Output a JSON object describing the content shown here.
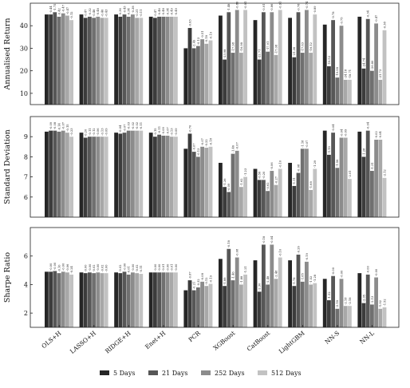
{
  "chart_data": [
    {
      "type": "bar",
      "ylabel": "Annualised Return",
      "ylim": [
        5,
        50
      ],
      "yticks": [
        10,
        20,
        30,
        40
      ],
      "grid": false,
      "categories": [
        "OLS+H",
        "LASSO+H",
        "RIDGE+H",
        "Enet+H",
        "PCR",
        "XGBoost",
        "CatBoost",
        "LightGBM",
        "NN-S",
        "NN-L"
      ],
      "series": [
        {
          "name": "5 Days",
          "values": [
            [
              45,
              null
            ],
            [
              45,
              null
            ],
            [
              45,
              null
            ],
            [
              44,
              null
            ],
            [
              30,
              null
            ],
            [
              44.5,
              null
            ],
            [
              42.5,
              null
            ],
            [
              43.5,
              null
            ],
            [
              40.5,
              null
            ],
            [
              44,
              null
            ]
          ]
        },
        {
          "name": "21 Days",
          "values": [
            [
              45,
              "-0.44"
            ],
            [
              43.5,
              "-0.47"
            ],
            [
              44,
              "-0.36"
            ],
            [
              43.5,
              "-0.47"
            ],
            [
              39,
              "-0.63"
            ],
            [
              25,
              "-23.98"
            ],
            [
              25,
              "-22.71"
            ],
            [
              26,
              "-21.36"
            ],
            [
              22,
              "-19.53"
            ],
            [
              21,
              "-24.74"
            ]
          ]
        },
        {
          "name": "21 Days",
          "values": [
            [
              46,
              "-1.75"
            ],
            [
              44,
              "-0.32"
            ],
            [
              45,
              "-0.43"
            ],
            [
              44,
              "-0.46"
            ],
            [
              30,
              "-2.49"
            ],
            [
              46,
              "-1.48"
            ],
            [
              46,
              "-0.91"
            ],
            [
              46,
              "-0.78"
            ],
            [
              42.5,
              "-0.78"
            ],
            [
              43,
              "-0.34"
            ]
          ]
        },
        {
          "name": "252 Days",
          "values": [
            [
              44,
              "-0.42"
            ],
            [
              43.5,
              "-0.48"
            ],
            [
              44,
              "-0.34"
            ],
            [
              44,
              "-0.48"
            ],
            [
              31,
              "-0.13"
            ],
            [
              28,
              "-17.98"
            ],
            [
              28.5,
              "-17.91"
            ],
            [
              28,
              "-17.63"
            ],
            [
              17,
              "-19.98"
            ],
            [
              20,
              "-26.80"
            ]
          ]
        },
        {
          "name": "252 Days",
          "values": [
            [
              45.5,
              "-0.47"
            ],
            [
              44,
              "-0.48"
            ],
            [
              45,
              "-0.38"
            ],
            [
              44,
              "-0.34"
            ],
            [
              34,
              "-0.51"
            ],
            [
              47,
              "-0.86"
            ],
            [
              46,
              "-0.86"
            ],
            [
              47,
              "-0.74"
            ],
            [
              40,
              "-0.75"
            ],
            [
              41,
              "-0.47"
            ]
          ]
        },
        {
          "name": "512 Days",
          "values": [
            [
              44.5,
              "-0.47"
            ],
            [
              43.5,
              "-0.46"
            ],
            [
              43.5,
              "-0.31"
            ],
            [
              44,
              "-0.49"
            ],
            [
              32,
              "-0.18"
            ],
            [
              28,
              "-16.98"
            ],
            [
              27,
              "-17.08"
            ],
            [
              28,
              "-16.12"
            ],
            [
              16,
              "-24.18"
            ],
            [
              16,
              "-21.73"
            ]
          ]
        },
        {
          "name": "512 Days",
          "values": [
            [
              42.5,
              "-0.12"
            ],
            [
              43.5,
              "-0.43"
            ],
            [
              43.5,
              "-0.11"
            ],
            [
              44,
              "-0.49"
            ],
            [
              33.5,
              "-0.19"
            ],
            [
              47,
              "-0.91"
            ],
            [
              47,
              "-0.91"
            ],
            [
              45,
              "-0.89"
            ],
            [
              16,
              "-18.71"
            ],
            [
              38,
              "-0.38"
            ]
          ]
        }
      ]
    },
    {
      "type": "bar",
      "ylabel": "Standard Deviation",
      "ylim": [
        5,
        10
      ],
      "yticks": [
        6,
        7,
        8,
        9
      ],
      "grid": false,
      "categories": [
        "OLS+H",
        "LASSO+H",
        "RIDGE+H",
        "Enet+H",
        "PCR",
        "XGBoost",
        "CatBoost",
        "LightGBM",
        "NN-S",
        "NN-L"
      ],
      "series": [
        {
          "name": "5 Days",
          "values": [
            [
              9.25,
              null
            ],
            [
              9.2,
              null
            ],
            [
              9.2,
              null
            ],
            [
              9.2,
              null
            ],
            [
              8.4,
              null
            ],
            [
              7.7,
              null
            ],
            [
              7.4,
              null
            ],
            [
              7.7,
              null
            ],
            [
              9.3,
              null
            ],
            [
              9.25,
              null
            ]
          ]
        },
        {
          "name": "21 Days",
          "values": [
            [
              9.3,
              "-0.09"
            ],
            [
              8.95,
              "-0.20"
            ],
            [
              9.15,
              "-0.04"
            ],
            [
              9.0,
              "-0.15"
            ],
            [
              9.15,
              "-0.70"
            ],
            [
              6.5,
              "-1.26"
            ],
            [
              6.85,
              "-0.56"
            ],
            [
              6.55,
              "-1.11"
            ],
            [
              8.1,
              "-1.19"
            ],
            [
              8.0,
              "-1.28"
            ]
          ]
        },
        {
          "name": "21 Days",
          "values": [
            [
              9.3,
              "-0.08"
            ],
            [
              9.0,
              "-0.11"
            ],
            [
              9.2,
              "-0.07"
            ],
            [
              9.1,
              "-0.11"
            ],
            [
              8.25,
              "-0.07"
            ],
            [
              6.25,
              "-0.09"
            ],
            [
              6.85,
              "-0.20"
            ],
            [
              7.2,
              "-0.08"
            ],
            [
              9.2,
              "-0.04"
            ],
            [
              9.3,
              "-0.04"
            ]
          ]
        },
        {
          "name": "252 Days",
          "values": [
            [
              9.25,
              "-0.14"
            ],
            [
              9.0,
              "-0.12"
            ],
            [
              9.3,
              "-0.03"
            ],
            [
              9.05,
              "-0.09"
            ],
            [
              8.0,
              "-0.13"
            ],
            [
              8.15,
              "-1.46"
            ],
            [
              6.3,
              "-0.62"
            ],
            [
              8.4,
              "-1.18"
            ],
            [
              7.45,
              "-1.56"
            ],
            [
              7.3,
              "-1.31"
            ]
          ]
        },
        {
          "name": "252 Days",
          "values": [
            [
              9.3,
              "-0.07"
            ],
            [
              9.0,
              "-0.06"
            ],
            [
              9.3,
              "-0.02"
            ],
            [
              9.05,
              "-0.07"
            ],
            [
              8.5,
              "-0.07"
            ],
            [
              8.3,
              "-0.07"
            ],
            [
              7.3,
              "-0.06"
            ],
            [
              8.4,
              "-0.07"
            ],
            [
              8.95,
              "-0.04"
            ],
            [
              8.85,
              "-0.02"
            ]
          ]
        },
        {
          "name": "512 Days",
          "values": [
            [
              9.2,
              "-0.15"
            ],
            [
              9.0,
              "-0.13"
            ],
            [
              9.3,
              "-0.02"
            ],
            [
              9.0,
              "-0.13"
            ],
            [
              8.45,
              "-0.22"
            ],
            [
              6.5,
              "-1.62"
            ],
            [
              6.6,
              "-0.27"
            ],
            [
              6.35,
              "-1.68"
            ],
            [
              8.95,
              "-0.09"
            ],
            [
              8.85,
              "-0.04"
            ]
          ]
        },
        {
          "name": "512 Days",
          "values": [
            [
              9.0,
              "-0.23"
            ],
            [
              9.0,
              "-0.09"
            ],
            [
              9.3,
              "-0.11"
            ],
            [
              9.0,
              "-0.09"
            ],
            [
              8.5,
              "-0.18"
            ],
            [
              7.0,
              "-1.23"
            ],
            [
              7.4,
              "-0.10"
            ],
            [
              7.4,
              "-1.29"
            ],
            [
              6.9,
              "-2.01"
            ],
            [
              6.95,
              "-2.12"
            ]
          ]
        }
      ]
    },
    {
      "type": "bar",
      "ylabel": "Sharpe Ratio",
      "ylim": [
        1,
        8
      ],
      "yticks": [
        2,
        4,
        6
      ],
      "grid": false,
      "categories": [
        "OLS+H",
        "LASSO+H",
        "RIDGE+H",
        "Enet+H",
        "PCR",
        "XGBoost",
        "CatBoost",
        "LightGBM",
        "NN-S",
        "NN-L"
      ],
      "series": [
        {
          "name": "5 Days",
          "values": [
            [
              4.9,
              null
            ],
            [
              4.85,
              null
            ],
            [
              4.85,
              null
            ],
            [
              4.85,
              null
            ],
            [
              3.6,
              null
            ],
            [
              5.8,
              null
            ],
            [
              5.7,
              null
            ],
            [
              5.7,
              null
            ],
            [
              4.4,
              null
            ],
            [
              4.8,
              null
            ]
          ]
        },
        {
          "name": "21 Days",
          "values": [
            [
              4.9,
              "-0.00"
            ],
            [
              4.8,
              "-0.00"
            ],
            [
              4.8,
              "-0.02"
            ],
            [
              4.85,
              "-0.00"
            ],
            [
              4.3,
              "-0.67"
            ],
            [
              3.9,
              "-1.88"
            ],
            [
              3.5,
              "-2.30"
            ],
            [
              3.9,
              "-1.78"
            ],
            [
              2.9,
              "-1.52"
            ],
            [
              2.7,
              "-2.05"
            ]
          ]
        },
        {
          "name": "21 Days",
          "values": [
            [
              4.95,
              "-0.00"
            ],
            [
              4.85,
              "-0.00"
            ],
            [
              4.9,
              "-0.00"
            ],
            [
              4.85,
              "-0.00"
            ],
            [
              3.6,
              "-0.21"
            ],
            [
              6.5,
              "-0.18"
            ],
            [
              6.8,
              "-0.18"
            ],
            [
              6.1,
              "-0.26"
            ],
            [
              4.6,
              "-0.00"
            ],
            [
              4.7,
              "-0.00"
            ]
          ]
        },
        {
          "name": "252 Days",
          "values": [
            [
              4.8,
              "-0.10"
            ],
            [
              4.8,
              "-0.02"
            ],
            [
              4.7,
              "-0.01"
            ],
            [
              4.85,
              "-0.01"
            ],
            [
              3.8,
              "-0.32"
            ],
            [
              4.3,
              "-1.46"
            ],
            [
              4.0,
              "-2.48"
            ],
            [
              4.2,
              "-1.85"
            ],
            [
              2.3,
              "-2.18"
            ],
            [
              2.6,
              "-2.13"
            ]
          ]
        },
        {
          "name": "252 Days",
          "values": [
            [
              4.9,
              "-0.00"
            ],
            [
              4.85,
              "-0.00"
            ],
            [
              4.85,
              "-0.00"
            ],
            [
              4.85,
              "-0.00"
            ],
            [
              4.2,
              "-0.08"
            ],
            [
              5.9,
              "-0.08"
            ],
            [
              6.8,
              "-0.04"
            ],
            [
              5.6,
              "-0.19"
            ],
            [
              4.4,
              "-0.00"
            ],
            [
              4.5,
              "-0.00"
            ]
          ]
        },
        {
          "name": "512 Days",
          "values": [
            [
              4.85,
              "-0.06"
            ],
            [
              4.8,
              "-0.02"
            ],
            [
              4.8,
              "-0.02"
            ],
            [
              4.85,
              "-0.01"
            ],
            [
              3.9,
              "-0.12"
            ],
            [
              4.0,
              "-1.88"
            ],
            [
              4.4,
              "-2.48"
            ],
            [
              4.0,
              "-1.52"
            ],
            [
              2.5,
              "-2.18"
            ],
            [
              2.3,
              "-1.92"
            ]
          ]
        },
        {
          "name": "512 Days",
          "values": [
            [
              4.7,
              "-0.24"
            ],
            [
              4.8,
              "-0.00"
            ],
            [
              4.75,
              "-0.11"
            ],
            [
              4.85,
              "-0.00"
            ],
            [
              4.05,
              "-0.19"
            ],
            [
              4.7,
              "-1.21"
            ],
            [
              5.9,
              "-0.10"
            ],
            [
              4.1,
              "-1.28"
            ],
            [
              2.5,
              "-2.18"
            ],
            [
              2.4,
              "-1.52"
            ]
          ]
        }
      ]
    }
  ],
  "legend": {
    "items": [
      {
        "label": "5 Days",
        "color": "#262626"
      },
      {
        "label": "21 Days",
        "color": "#575757"
      },
      {
        "label": "252 Days",
        "color": "#8c8c8c"
      },
      {
        "label": "512 Days",
        "color": "#c2c2c2"
      }
    ]
  },
  "colors": [
    "#262626",
    "#3c3c3c",
    "#575757",
    "#707070",
    "#8c8c8c",
    "#a8a8a8",
    "#c2c2c2"
  ]
}
